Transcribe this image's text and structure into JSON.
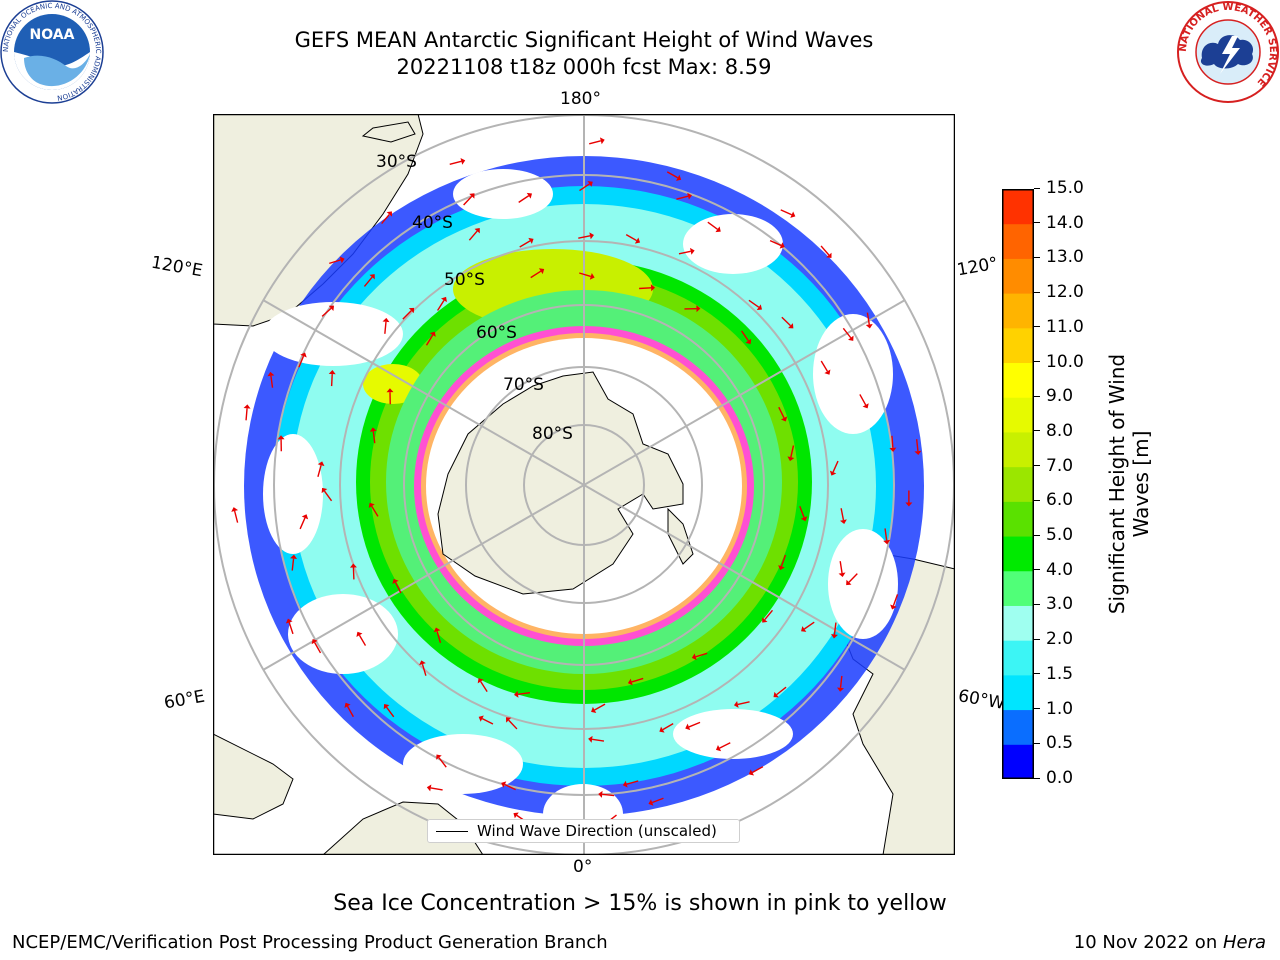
{
  "title": {
    "line1": "GEFS MEAN Antarctic Significant Height of Wind Waves",
    "line2": "20221108 t18z 000h fcst   Max: 8.59"
  },
  "map": {
    "projection": "south-polar-stereographic",
    "meridian_labels": {
      "top": "180°",
      "bottom": "0°",
      "left_upper": "120°E",
      "left_lower": "60°E",
      "right_upper": "120°",
      "right_lower": "60°W"
    },
    "latitude_labels": [
      "30°S",
      "40°S",
      "50°S",
      "60°S",
      "70°S",
      "80°S"
    ],
    "land_color": "#efefdf",
    "grid_color": "#b4b4b4",
    "arrow_color": "#e80000"
  },
  "legend": {
    "label": "Wind Wave Direction (unscaled)"
  },
  "colorbar": {
    "label": "Significant Height of Wind Waves [m]",
    "ticks": [
      "0.0",
      "0.5",
      "1.0",
      "1.5",
      "2.0",
      "3.0",
      "4.0",
      "5.0",
      "6.0",
      "7.0",
      "8.0",
      "9.0",
      "10.0",
      "11.0",
      "12.0",
      "13.0",
      "14.0",
      "15.0"
    ],
    "colors": [
      "#0000ff",
      "#0a6eff",
      "#00e5ff",
      "#3cf5f5",
      "#9ffff0",
      "#50ff78",
      "#00ea00",
      "#5ae100",
      "#9be600",
      "#c8f000",
      "#e6fa00",
      "#ffff00",
      "#ffd200",
      "#ffb400",
      "#ff8c00",
      "#ff6400",
      "#ff3200"
    ]
  },
  "caption": "Sea Ice Concentration > 15% is shown in pink to yellow",
  "footer": {
    "left": "NCEP/EMC/Verification Post Processing Product Generation Branch",
    "right_date": "10 Nov 2022 on ",
    "right_host": "Hera"
  },
  "logos": {
    "noaa": "NOAA",
    "nws_ring": "NATIONAL WEATHER SERVICE",
    "noaa_ring": "NATIONAL OCEANIC AND ATMOSPHERIC ADMINISTRATION"
  }
}
